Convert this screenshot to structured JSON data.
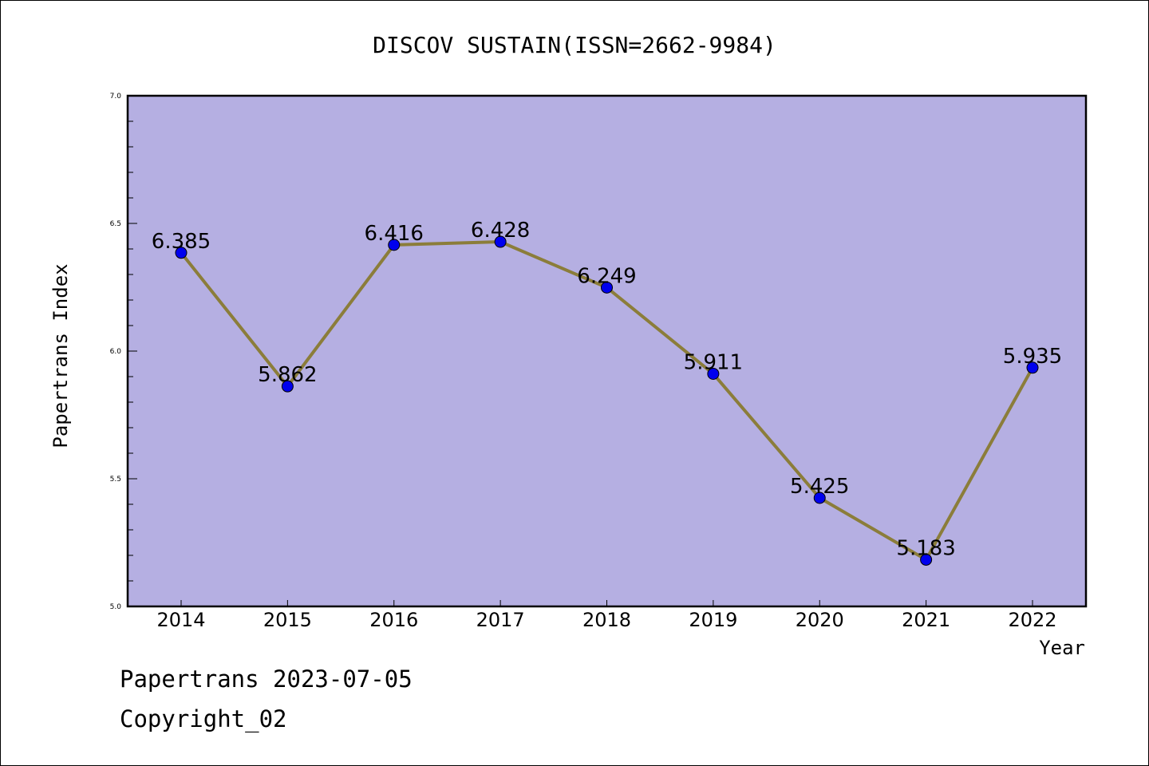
{
  "chart_data": {
    "type": "line",
    "title": "DISCOV SUSTAIN(ISSN=2662-9984)",
    "xlabel": "Year",
    "ylabel": "Papertrans Index",
    "categories": [
      "2014",
      "2015",
      "2016",
      "2017",
      "2018",
      "2019",
      "2020",
      "2021",
      "2022"
    ],
    "series": [
      {
        "values": [
          6.385,
          5.862,
          6.416,
          6.428,
          6.249,
          5.911,
          5.425,
          5.183,
          5.935
        ],
        "labels": [
          "6.385",
          "5.862",
          "6.416",
          "6.428",
          "6.249",
          "5.911",
          "5.425",
          "5.183",
          "5.935"
        ]
      }
    ],
    "ylim": [
      5.0,
      7.0
    ],
    "yticks": [
      "5.0",
      "5.5",
      "6.0",
      "6.5",
      "7.0"
    ],
    "grid": false,
    "colors": {
      "plot_background": "#b5afe2",
      "line": "#8b7d3a",
      "marker": "#0000ee"
    }
  },
  "footer": {
    "line1": "Papertrans 2023-07-05",
    "line2": "Copyright_02"
  }
}
